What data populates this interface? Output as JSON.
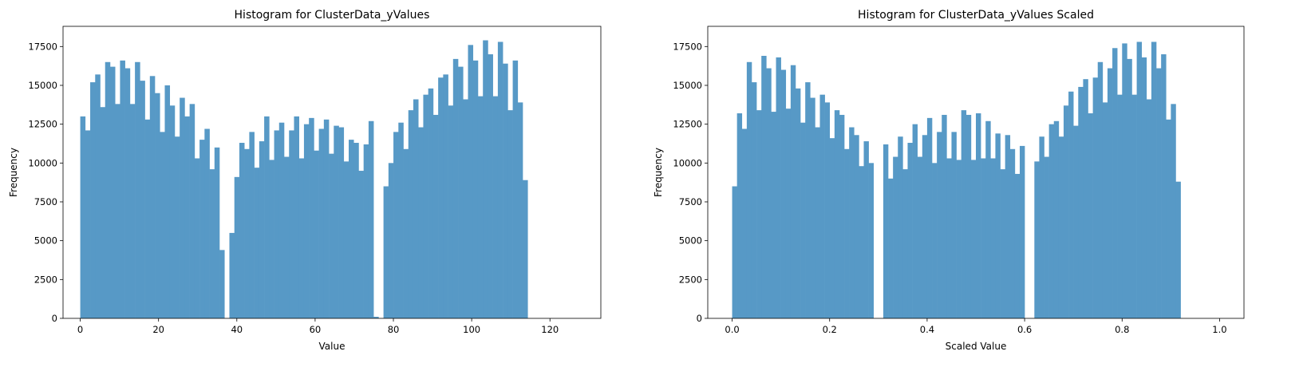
{
  "chart_data": [
    {
      "type": "bar",
      "title": "Histogram for ClusterData_yValues",
      "xlabel": "Value",
      "ylabel": "Frequency",
      "xlim": [
        -4.4,
        133
      ],
      "ylim": [
        0,
        18800
      ],
      "xticks": [
        0,
        20,
        40,
        60,
        80,
        100,
        120
      ],
      "yticks": [
        0,
        2500,
        5000,
        7500,
        10000,
        12500,
        15000,
        17500
      ],
      "grid": false,
      "color": "#5799c6",
      "bin_start": 0,
      "bin_width": 1.27,
      "values": [
        13000,
        12100,
        15200,
        15700,
        13600,
        16500,
        16200,
        13800,
        16600,
        16100,
        13800,
        16500,
        15300,
        12800,
        15600,
        14500,
        12000,
        15000,
        13700,
        11700,
        14200,
        13000,
        13800,
        10300,
        11500,
        12200,
        9600,
        11000,
        4400,
        0,
        5500,
        9100,
        11300,
        10900,
        12000,
        9700,
        11400,
        13000,
        10200,
        12100,
        12600,
        10400,
        12100,
        13000,
        10300,
        12500,
        12900,
        10800,
        12200,
        12800,
        10600,
        12400,
        12300,
        10100,
        11500,
        11300,
        9500,
        11200,
        12700,
        100,
        0,
        8500,
        10000,
        12000,
        12600,
        10900,
        13400,
        14100,
        12300,
        14400,
        14800,
        13100,
        15500,
        15700,
        13700,
        16700,
        16200,
        14100,
        17600,
        16600,
        14300,
        17900,
        17000,
        14300,
        17800,
        16400,
        13400,
        16600,
        13900,
        8900
      ]
    },
    {
      "type": "bar",
      "title": "Histogram for ClusterData_yValues Scaled",
      "xlabel": "Scaled Value",
      "ylabel": "Frequency",
      "xlim": [
        -0.05,
        1.05
      ],
      "ylim": [
        0,
        18800
      ],
      "xticks": [
        0.0,
        0.2,
        0.4,
        0.6,
        0.8,
        1.0
      ],
      "yticks": [
        0,
        2500,
        5000,
        7500,
        10000,
        12500,
        15000,
        17500
      ],
      "grid": false,
      "color": "#5799c6",
      "bin_start": 0,
      "bin_width": 0.01,
      "values": [
        8500,
        13200,
        12200,
        16500,
        15200,
        13400,
        16900,
        16100,
        13300,
        16800,
        16000,
        13500,
        16300,
        14800,
        12600,
        15200,
        14200,
        12300,
        14400,
        13900,
        11600,
        13400,
        13100,
        10900,
        12300,
        11800,
        9800,
        11400,
        10000,
        0,
        0,
        11200,
        9000,
        10400,
        11700,
        9600,
        11300,
        12500,
        10400,
        11800,
        12900,
        10000,
        12000,
        13100,
        10300,
        12000,
        10200,
        13400,
        13100,
        10200,
        13200,
        10300,
        12700,
        10300,
        11900,
        9600,
        11800,
        10900,
        9300,
        11100,
        0,
        0,
        10100,
        11700,
        10400,
        12500,
        12700,
        11700,
        13700,
        14600,
        12400,
        14900,
        15400,
        13200,
        15500,
        16500,
        13900,
        16100,
        17400,
        14400,
        17700,
        16700,
        14400,
        17800,
        16800,
        14100,
        17800,
        16100,
        17000,
        12800,
        13800,
        8800
      ]
    }
  ]
}
